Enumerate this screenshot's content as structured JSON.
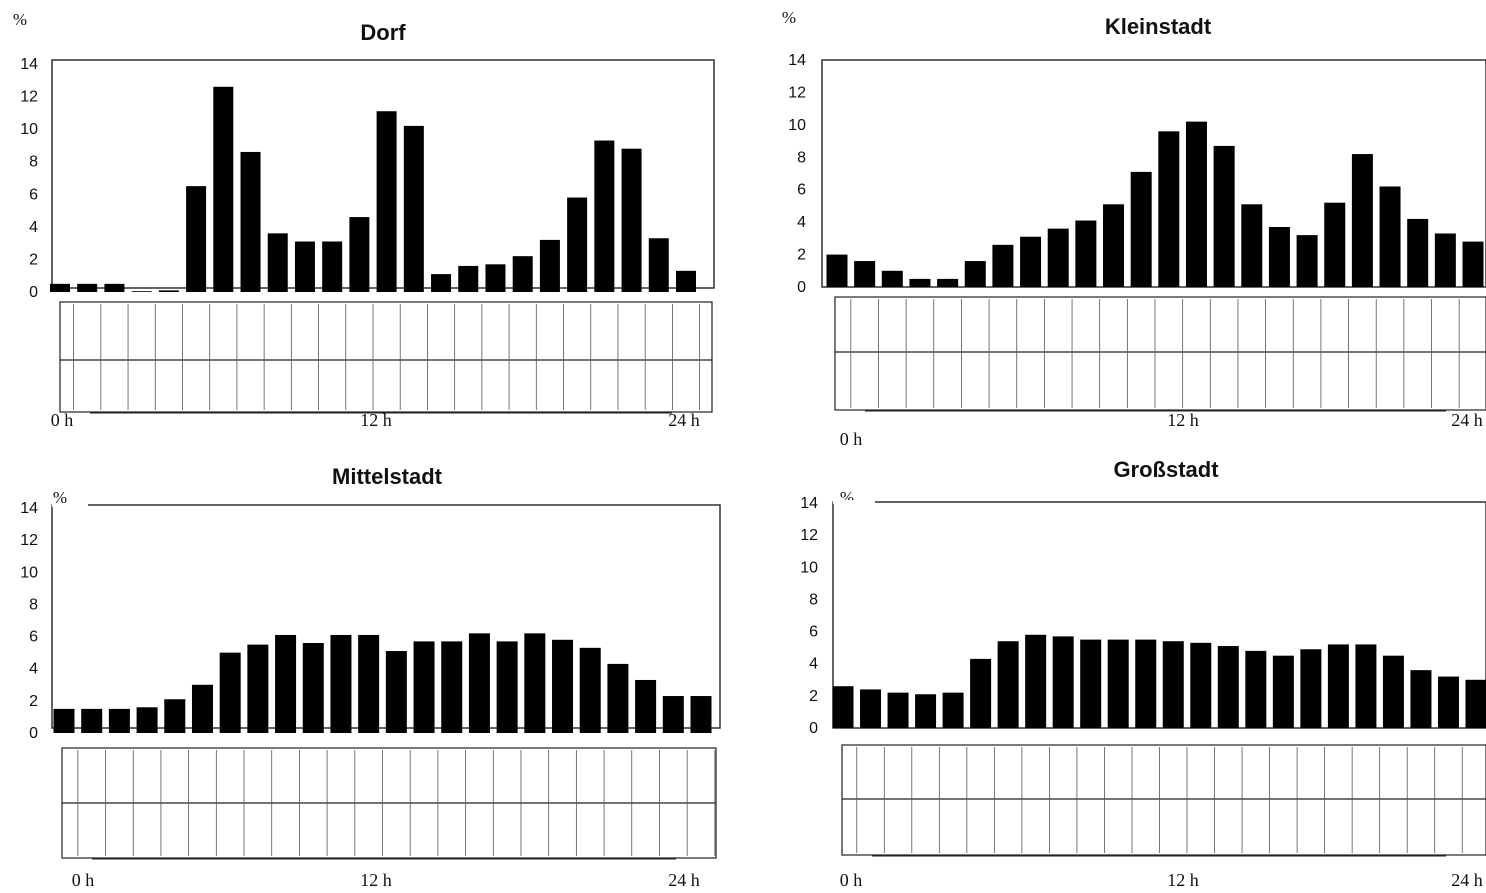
{
  "chart_data": [
    {
      "type": "bar",
      "title": "Dorf",
      "ylabel": "%",
      "ylim": [
        0,
        14
      ],
      "yticks": [
        0,
        2,
        4,
        6,
        8,
        10,
        12,
        14
      ],
      "x_tick_labels": [
        "0 h",
        "12 h",
        "24 h"
      ],
      "categories": [
        "0",
        "1",
        "2",
        "3",
        "4",
        "5",
        "6",
        "7",
        "8",
        "9",
        "10",
        "11",
        "12",
        "13",
        "14",
        "15",
        "16",
        "17",
        "18",
        "19",
        "20",
        "21",
        "22",
        "23"
      ],
      "values": [
        0.5,
        0.5,
        0.5,
        0.0,
        0.1,
        6.5,
        12.6,
        8.6,
        3.6,
        3.1,
        3.1,
        4.6,
        11.1,
        10.2,
        1.1,
        1.6,
        1.7,
        2.2,
        3.2,
        5.8,
        9.3,
        8.8,
        3.3,
        1.3
      ],
      "grid": false
    },
    {
      "type": "bar",
      "title": "Kleinstadt",
      "ylabel": "%",
      "ylim": [
        0,
        14
      ],
      "yticks": [
        0,
        2,
        4,
        6,
        8,
        10,
        12,
        14
      ],
      "x_tick_labels": [
        "0 h",
        "12 h",
        "24 h"
      ],
      "categories": [
        "0",
        "1",
        "2",
        "3",
        "4",
        "5",
        "6",
        "7",
        "8",
        "9",
        "10",
        "11",
        "12",
        "13",
        "14",
        "15",
        "16",
        "17",
        "18",
        "19",
        "20",
        "21",
        "22",
        "23"
      ],
      "values": [
        2.0,
        1.6,
        1.0,
        0.5,
        0.5,
        1.6,
        2.6,
        3.1,
        3.6,
        4.1,
        5.1,
        7.1,
        9.6,
        10.2,
        8.7,
        5.1,
        3.7,
        3.2,
        5.2,
        8.2,
        6.2,
        4.2,
        3.3,
        2.8
      ],
      "grid": false
    },
    {
      "type": "bar",
      "title": "Mittelstadt",
      "ylabel": "%",
      "ylim": [
        0,
        14
      ],
      "yticks": [
        0,
        2,
        4,
        6,
        8,
        10,
        12,
        14
      ],
      "x_tick_labels": [
        "0 h",
        "12 h",
        "24 h"
      ],
      "categories": [
        "0",
        "1",
        "2",
        "3",
        "4",
        "5",
        "6",
        "7",
        "8",
        "9",
        "10",
        "11",
        "12",
        "13",
        "14",
        "15",
        "16",
        "17",
        "18",
        "19",
        "20",
        "21",
        "22",
        "23"
      ],
      "values": [
        1.5,
        1.5,
        1.5,
        1.6,
        2.1,
        3.0,
        5.0,
        5.5,
        6.1,
        5.6,
        6.1,
        6.1,
        5.1,
        5.7,
        5.7,
        6.2,
        5.7,
        6.2,
        5.8,
        5.3,
        4.3,
        3.3,
        2.3,
        2.3
      ],
      "grid": false
    },
    {
      "type": "bar",
      "title": "Großstadt",
      "ylabel": "%",
      "ylim": [
        0,
        14
      ],
      "yticks": [
        0,
        2,
        4,
        6,
        8,
        10,
        12,
        14
      ],
      "x_tick_labels": [
        "0 h",
        "12 h",
        "24 h"
      ],
      "categories": [
        "0",
        "1",
        "2",
        "3",
        "4",
        "5",
        "6",
        "7",
        "8",
        "9",
        "10",
        "11",
        "12",
        "13",
        "14",
        "15",
        "16",
        "17",
        "18",
        "19",
        "20",
        "21",
        "22",
        "23"
      ],
      "values": [
        2.6,
        2.4,
        2.2,
        2.1,
        2.2,
        4.3,
        5.4,
        5.8,
        5.7,
        5.5,
        5.5,
        5.5,
        5.4,
        5.3,
        5.1,
        4.8,
        4.5,
        4.9,
        5.2,
        5.2,
        4.5,
        3.6,
        3.2,
        3.0
      ],
      "grid": false
    }
  ]
}
